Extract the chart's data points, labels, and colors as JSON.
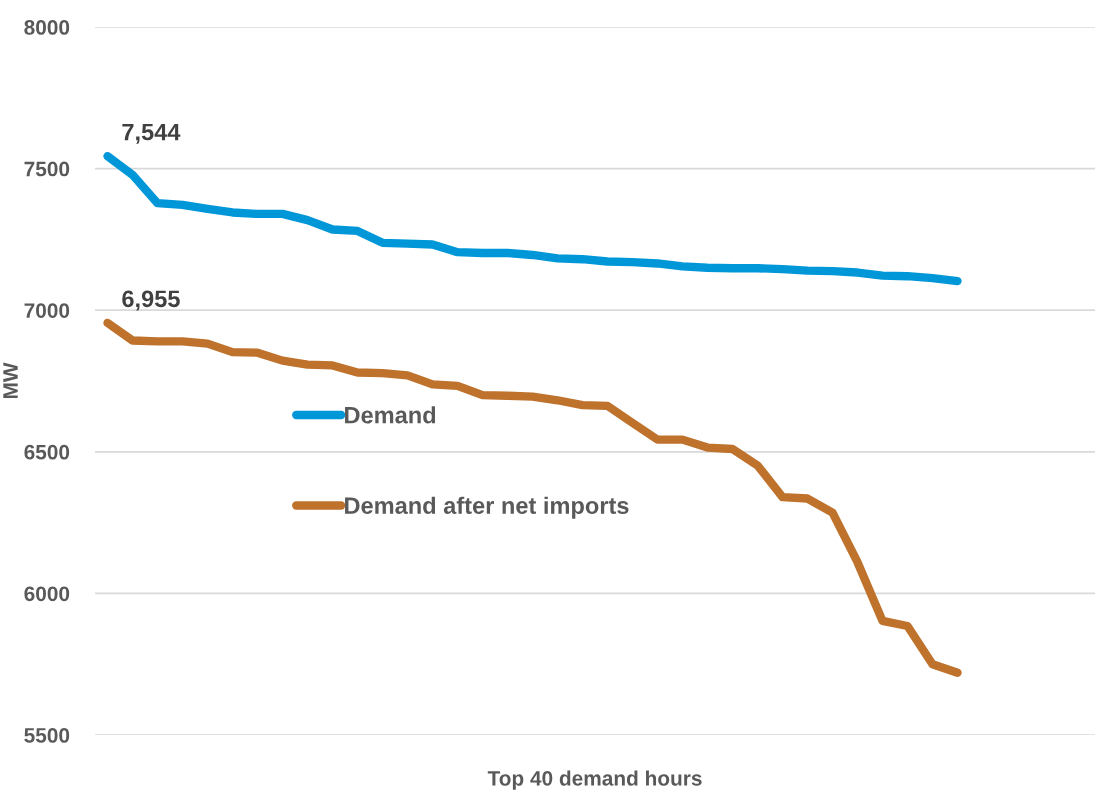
{
  "chart_data": {
    "type": "line",
    "xlabel": "Top 40 demand hours",
    "ylabel": "MW",
    "categories": [
      null,
      null,
      null,
      null,
      null,
      null,
      null,
      null,
      null,
      null,
      null,
      null,
      null,
      null,
      null,
      null,
      null,
      null,
      null,
      null,
      null,
      null,
      null,
      null,
      null,
      null,
      null,
      null,
      null,
      null,
      null,
      null,
      null,
      null,
      null,
      null,
      null,
      null,
      null,
      null
    ],
    "series": [
      {
        "name": "Demand",
        "color": "#0097d8",
        "value_labels": [
          "7,544",
          null,
          null,
          null,
          null,
          null,
          null,
          null,
          null,
          null,
          null,
          null,
          null,
          null,
          null,
          null,
          null,
          null,
          null,
          null,
          null,
          null,
          null,
          null,
          null,
          null,
          null,
          null,
          null,
          null,
          null,
          null,
          null,
          null,
          null,
          null,
          null,
          null,
          null,
          null
        ],
        "values": [
          7544,
          7478,
          7378,
          7372,
          7358,
          7345,
          7340,
          7340,
          7318,
          7285,
          7280,
          7238,
          7235,
          7232,
          7205,
          7202,
          7202,
          7195,
          7183,
          7180,
          7172,
          7170,
          7165,
          7155,
          7150,
          7148,
          7148,
          7145,
          7140,
          7138,
          7133,
          7122,
          7120,
          7113,
          7103,
          null,
          null,
          null,
          null,
          null
        ]
      },
      {
        "name": "Demand after net imports",
        "color": "#bf722c",
        "value_labels": [
          "6,955",
          null,
          null,
          null,
          null,
          null,
          null,
          null,
          null,
          null,
          null,
          null,
          null,
          null,
          null,
          null,
          null,
          null,
          null,
          null,
          null,
          null,
          null,
          null,
          null,
          null,
          null,
          null,
          null,
          null,
          null,
          null,
          null,
          null,
          null,
          null,
          null,
          null,
          null,
          null
        ],
        "values": [
          6955,
          6893,
          6890,
          6890,
          6882,
          6852,
          6850,
          6822,
          6808,
          6805,
          6780,
          6778,
          6770,
          6738,
          6733,
          6700,
          6698,
          6695,
          6682,
          6665,
          6662,
          6602,
          6543,
          6543,
          6515,
          6510,
          6452,
          6340,
          6335,
          6285,
          6110,
          5903,
          5885,
          5750,
          5720,
          null,
          null,
          null,
          null,
          null
        ]
      }
    ],
    "ylim": [
      5500,
      8000
    ],
    "yticks": [
      5500,
      6000,
      6500,
      7000,
      7500,
      8000
    ],
    "grid": "y",
    "legend": "left",
    "line_style": "solid",
    "marker": "none"
  }
}
